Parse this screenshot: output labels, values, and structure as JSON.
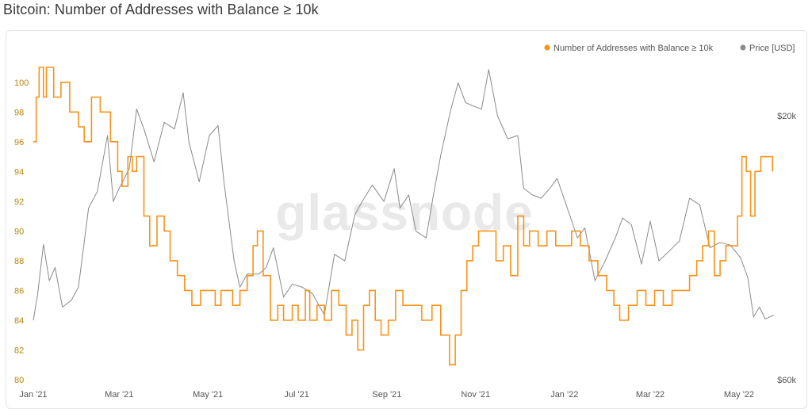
{
  "chart_data": {
    "type": "line",
    "title": "Bitcoin: Number of Addresses with Balance ≥ 10k",
    "watermark": "glassnode",
    "legend_position": "top-right",
    "x_ticks": [
      "Jan '21",
      "Mar '21",
      "May '21",
      "Jul '21",
      "Sep '21",
      "Nov '21",
      "Jan '22",
      "Mar '22",
      "May '22"
    ],
    "x_range": [
      "2021-01-01",
      "2022-05-25"
    ],
    "y_left": {
      "ticks": [
        80,
        82,
        84,
        86,
        88,
        90,
        92,
        94,
        96,
        98,
        100
      ],
      "range": [
        80,
        101
      ],
      "color": "#d4a017"
    },
    "y_right": {
      "ticks": [
        "$20k",
        "$60k"
      ],
      "range_usd": [
        20000,
        66000
      ]
    },
    "grid": false,
    "colors": {
      "addresses": "#f7931a",
      "price": "#8a8a8a"
    },
    "series": [
      {
        "name": "Number of Addresses with Balance ≥ 10k",
        "axis": "left",
        "points": [
          [
            "2021-01-01",
            96
          ],
          [
            "2021-01-03",
            99
          ],
          [
            "2021-01-05",
            101
          ],
          [
            "2021-01-08",
            99
          ],
          [
            "2021-01-10",
            101
          ],
          [
            "2021-01-15",
            99
          ],
          [
            "2021-01-20",
            100
          ],
          [
            "2021-01-26",
            98
          ],
          [
            "2021-02-01",
            97
          ],
          [
            "2021-02-05",
            96
          ],
          [
            "2021-02-10",
            99
          ],
          [
            "2021-02-16",
            98
          ],
          [
            "2021-02-23",
            96
          ],
          [
            "2021-02-28",
            94
          ],
          [
            "2021-03-03",
            93
          ],
          [
            "2021-03-07",
            95
          ],
          [
            "2021-03-10",
            94
          ],
          [
            "2021-03-13",
            95
          ],
          [
            "2021-03-18",
            91
          ],
          [
            "2021-03-22",
            89
          ],
          [
            "2021-03-27",
            91
          ],
          [
            "2021-04-01",
            90
          ],
          [
            "2021-04-05",
            88
          ],
          [
            "2021-04-10",
            87
          ],
          [
            "2021-04-15",
            86
          ],
          [
            "2021-04-20",
            85
          ],
          [
            "2021-04-26",
            86
          ],
          [
            "2021-05-01",
            86
          ],
          [
            "2021-05-06",
            85
          ],
          [
            "2021-05-10",
            86
          ],
          [
            "2021-05-14",
            86
          ],
          [
            "2021-05-18",
            85
          ],
          [
            "2021-05-23",
            86
          ],
          [
            "2021-05-28",
            87
          ],
          [
            "2021-06-01",
            89
          ],
          [
            "2021-06-04",
            90
          ],
          [
            "2021-06-08",
            87
          ],
          [
            "2021-06-13",
            84
          ],
          [
            "2021-06-18",
            85
          ],
          [
            "2021-06-22",
            84
          ],
          [
            "2021-06-28",
            85
          ],
          [
            "2021-07-02",
            84
          ],
          [
            "2021-07-07",
            86
          ],
          [
            "2021-07-10",
            84
          ],
          [
            "2021-07-15",
            85
          ],
          [
            "2021-07-20",
            84
          ],
          [
            "2021-07-25",
            86
          ],
          [
            "2021-07-30",
            85
          ],
          [
            "2021-08-04",
            83
          ],
          [
            "2021-08-08",
            84
          ],
          [
            "2021-08-12",
            82
          ],
          [
            "2021-08-16",
            85
          ],
          [
            "2021-08-20",
            86
          ],
          [
            "2021-08-24",
            84
          ],
          [
            "2021-08-28",
            83
          ],
          [
            "2021-09-02",
            84
          ],
          [
            "2021-09-07",
            86
          ],
          [
            "2021-09-12",
            85
          ],
          [
            "2021-09-18",
            85
          ],
          [
            "2021-09-25",
            84
          ],
          [
            "2021-10-02",
            85
          ],
          [
            "2021-10-08",
            83
          ],
          [
            "2021-10-14",
            81
          ],
          [
            "2021-10-18",
            83
          ],
          [
            "2021-10-22",
            86
          ],
          [
            "2021-10-26",
            88
          ],
          [
            "2021-10-30",
            89
          ],
          [
            "2021-11-03",
            90
          ],
          [
            "2021-11-10",
            90
          ],
          [
            "2021-11-15",
            88
          ],
          [
            "2021-11-20",
            89
          ],
          [
            "2021-11-25",
            87
          ],
          [
            "2021-11-30",
            91
          ],
          [
            "2021-12-04",
            89
          ],
          [
            "2021-12-08",
            90
          ],
          [
            "2021-12-14",
            89
          ],
          [
            "2021-12-20",
            90
          ],
          [
            "2021-12-26",
            89
          ],
          [
            "2022-01-01",
            89
          ],
          [
            "2022-01-06",
            90
          ],
          [
            "2022-01-12",
            89
          ],
          [
            "2022-01-18",
            88
          ],
          [
            "2022-01-24",
            87
          ],
          [
            "2022-01-30",
            86
          ],
          [
            "2022-02-04",
            85
          ],
          [
            "2022-02-08",
            84
          ],
          [
            "2022-02-14",
            85
          ],
          [
            "2022-02-20",
            86
          ],
          [
            "2022-02-26",
            85
          ],
          [
            "2022-03-04",
            86
          ],
          [
            "2022-03-10",
            85
          ],
          [
            "2022-03-16",
            86
          ],
          [
            "2022-03-22",
            86
          ],
          [
            "2022-03-28",
            87
          ],
          [
            "2022-04-02",
            88
          ],
          [
            "2022-04-06",
            89
          ],
          [
            "2022-04-10",
            90
          ],
          [
            "2022-04-14",
            87
          ],
          [
            "2022-04-18",
            88
          ],
          [
            "2022-04-22",
            89
          ],
          [
            "2022-04-26",
            89
          ],
          [
            "2022-04-30",
            91
          ],
          [
            "2022-05-03",
            95
          ],
          [
            "2022-05-06",
            94
          ],
          [
            "2022-05-09",
            91
          ],
          [
            "2022-05-12",
            94
          ],
          [
            "2022-05-16",
            95
          ],
          [
            "2022-05-20",
            95
          ],
          [
            "2022-05-24",
            94
          ]
        ]
      },
      {
        "name": "Price [USD]",
        "axis": "right",
        "points": [
          [
            "2021-01-01",
            29000
          ],
          [
            "2021-01-04",
            33000
          ],
          [
            "2021-01-08",
            40500
          ],
          [
            "2021-01-12",
            35000
          ],
          [
            "2021-01-16",
            37000
          ],
          [
            "2021-01-21",
            31000
          ],
          [
            "2021-01-27",
            32000
          ],
          [
            "2021-02-01",
            34000
          ],
          [
            "2021-02-08",
            46000
          ],
          [
            "2021-02-14",
            48500
          ],
          [
            "2021-02-21",
            57000
          ],
          [
            "2021-02-25",
            47000
          ],
          [
            "2021-03-01",
            49000
          ],
          [
            "2021-03-08",
            52000
          ],
          [
            "2021-03-13",
            61000
          ],
          [
            "2021-03-18",
            58000
          ],
          [
            "2021-03-25",
            53000
          ],
          [
            "2021-04-01",
            59000
          ],
          [
            "2021-04-08",
            58000
          ],
          [
            "2021-04-14",
            63500
          ],
          [
            "2021-04-18",
            56000
          ],
          [
            "2021-04-25",
            50000
          ],
          [
            "2021-05-02",
            57000
          ],
          [
            "2021-05-08",
            58500
          ],
          [
            "2021-05-12",
            50000
          ],
          [
            "2021-05-19",
            38000
          ],
          [
            "2021-05-23",
            34000
          ],
          [
            "2021-05-28",
            36000
          ],
          [
            "2021-06-05",
            36000
          ],
          [
            "2021-06-10",
            37000
          ],
          [
            "2021-06-15",
            40000
          ],
          [
            "2021-06-22",
            32500
          ],
          [
            "2021-06-28",
            34500
          ],
          [
            "2021-07-05",
            34000
          ],
          [
            "2021-07-12",
            33000
          ],
          [
            "2021-07-20",
            29800
          ],
          [
            "2021-07-27",
            39000
          ],
          [
            "2021-08-03",
            38000
          ],
          [
            "2021-08-10",
            45000
          ],
          [
            "2021-08-15",
            47000
          ],
          [
            "2021-08-22",
            49500
          ],
          [
            "2021-08-30",
            47000
          ],
          [
            "2021-09-06",
            52000
          ],
          [
            "2021-09-10",
            46000
          ],
          [
            "2021-09-16",
            48000
          ],
          [
            "2021-09-21",
            42500
          ],
          [
            "2021-09-28",
            41500
          ],
          [
            "2021-10-03",
            48000
          ],
          [
            "2021-10-08",
            54000
          ],
          [
            "2021-10-15",
            61000
          ],
          [
            "2021-10-20",
            65000
          ],
          [
            "2021-10-25",
            62000
          ],
          [
            "2021-10-30",
            61500
          ],
          [
            "2021-11-05",
            61000
          ],
          [
            "2021-11-10",
            67000
          ],
          [
            "2021-11-16",
            60000
          ],
          [
            "2021-11-23",
            56500
          ],
          [
            "2021-11-30",
            57000
          ],
          [
            "2021-12-04",
            49000
          ],
          [
            "2021-12-10",
            48000
          ],
          [
            "2021-12-16",
            47500
          ],
          [
            "2021-12-22",
            49000
          ],
          [
            "2021-12-27",
            50500
          ],
          [
            "2022-01-03",
            46000
          ],
          [
            "2022-01-10",
            41500
          ],
          [
            "2022-01-15",
            43000
          ],
          [
            "2022-01-22",
            35000
          ],
          [
            "2022-01-28",
            37500
          ],
          [
            "2022-02-05",
            41500
          ],
          [
            "2022-02-10",
            44500
          ],
          [
            "2022-02-16",
            43500
          ],
          [
            "2022-02-23",
            37500
          ],
          [
            "2022-03-01",
            44000
          ],
          [
            "2022-03-07",
            38000
          ],
          [
            "2022-03-14",
            39500
          ],
          [
            "2022-03-21",
            41000
          ],
          [
            "2022-03-28",
            47500
          ],
          [
            "2022-04-04",
            46500
          ],
          [
            "2022-04-11",
            40000
          ],
          [
            "2022-04-18",
            40800
          ],
          [
            "2022-04-25",
            40400
          ],
          [
            "2022-05-02",
            38500
          ],
          [
            "2022-05-07",
            35500
          ],
          [
            "2022-05-11",
            29500
          ],
          [
            "2022-05-15",
            31000
          ],
          [
            "2022-05-19",
            29200
          ],
          [
            "2022-05-25",
            29800
          ]
        ]
      }
    ]
  }
}
